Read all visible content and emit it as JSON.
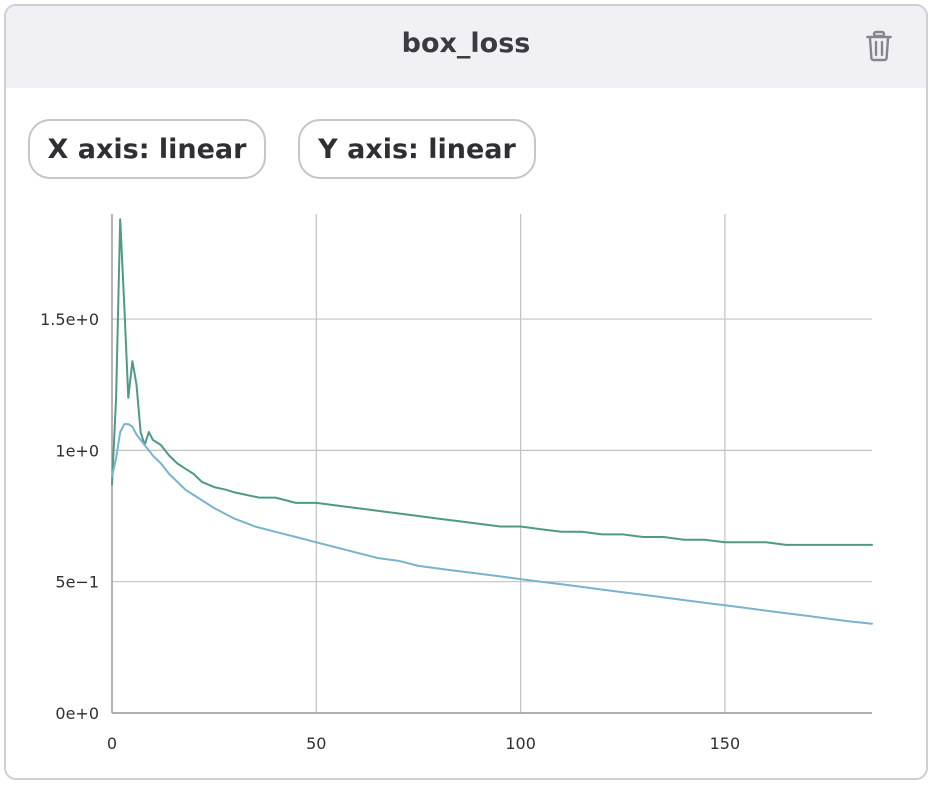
{
  "panel": {
    "title": "box_loss",
    "delete_icon": "trash-icon",
    "x_axis_button": "X axis: linear",
    "y_axis_button": "Y axis: linear"
  },
  "colors": {
    "header_bg": "#f1f1f5",
    "series_1": "#4e9a86",
    "series_2": "#7ab3cc",
    "grid": "#c2c2c2"
  },
  "chart_data": {
    "type": "line",
    "title": "",
    "xlabel": "",
    "ylabel": "",
    "xlim": [
      0,
      186
    ],
    "ylim": [
      0,
      1.9
    ],
    "grid": true,
    "x_ticks": [
      {
        "value": 0,
        "label": "0"
      },
      {
        "value": 50,
        "label": "50"
      },
      {
        "value": 100,
        "label": "100"
      },
      {
        "value": 150,
        "label": "150"
      }
    ],
    "y_ticks": [
      {
        "value": 0,
        "label": "0e+0"
      },
      {
        "value": 0.5,
        "label": "5e−1"
      },
      {
        "value": 1.0,
        "label": "1e+0"
      },
      {
        "value": 1.5,
        "label": "1.5e+0"
      }
    ],
    "series": [
      {
        "color": "#4e9a86",
        "points": [
          [
            0,
            0.87
          ],
          [
            1,
            1.2
          ],
          [
            2,
            1.88
          ],
          [
            3,
            1.55
          ],
          [
            4,
            1.2
          ],
          [
            5,
            1.34
          ],
          [
            6,
            1.25
          ],
          [
            7,
            1.07
          ],
          [
            8,
            1.02
          ],
          [
            9,
            1.07
          ],
          [
            10,
            1.04
          ],
          [
            12,
            1.02
          ],
          [
            14,
            0.98
          ],
          [
            16,
            0.95
          ],
          [
            18,
            0.93
          ],
          [
            20,
            0.91
          ],
          [
            22,
            0.88
          ],
          [
            25,
            0.86
          ],
          [
            28,
            0.85
          ],
          [
            30,
            0.84
          ],
          [
            33,
            0.83
          ],
          [
            36,
            0.82
          ],
          [
            40,
            0.82
          ],
          [
            45,
            0.8
          ],
          [
            50,
            0.8
          ],
          [
            55,
            0.79
          ],
          [
            60,
            0.78
          ],
          [
            65,
            0.77
          ],
          [
            70,
            0.76
          ],
          [
            75,
            0.75
          ],
          [
            80,
            0.74
          ],
          [
            85,
            0.73
          ],
          [
            90,
            0.72
          ],
          [
            95,
            0.71
          ],
          [
            100,
            0.71
          ],
          [
            105,
            0.7
          ],
          [
            110,
            0.69
          ],
          [
            115,
            0.69
          ],
          [
            120,
            0.68
          ],
          [
            125,
            0.68
          ],
          [
            130,
            0.67
          ],
          [
            135,
            0.67
          ],
          [
            140,
            0.66
          ],
          [
            145,
            0.66
          ],
          [
            150,
            0.65
          ],
          [
            155,
            0.65
          ],
          [
            160,
            0.65
          ],
          [
            165,
            0.64
          ],
          [
            170,
            0.64
          ],
          [
            175,
            0.64
          ],
          [
            180,
            0.64
          ],
          [
            186,
            0.64
          ]
        ]
      },
      {
        "color": "#7ab3cc",
        "points": [
          [
            0,
            0.9
          ],
          [
            1,
            0.97
          ],
          [
            2,
            1.07
          ],
          [
            3,
            1.1
          ],
          [
            4,
            1.1
          ],
          [
            5,
            1.09
          ],
          [
            6,
            1.06
          ],
          [
            8,
            1.02
          ],
          [
            10,
            0.98
          ],
          [
            12,
            0.95
          ],
          [
            14,
            0.91
          ],
          [
            16,
            0.88
          ],
          [
            18,
            0.85
          ],
          [
            20,
            0.83
          ],
          [
            25,
            0.78
          ],
          [
            30,
            0.74
          ],
          [
            35,
            0.71
          ],
          [
            40,
            0.69
          ],
          [
            45,
            0.67
          ],
          [
            50,
            0.65
          ],
          [
            55,
            0.63
          ],
          [
            60,
            0.61
          ],
          [
            65,
            0.59
          ],
          [
            70,
            0.58
          ],
          [
            75,
            0.56
          ],
          [
            80,
            0.55
          ],
          [
            85,
            0.54
          ],
          [
            90,
            0.53
          ],
          [
            95,
            0.52
          ],
          [
            100,
            0.51
          ],
          [
            105,
            0.5
          ],
          [
            110,
            0.49
          ],
          [
            115,
            0.48
          ],
          [
            120,
            0.47
          ],
          [
            125,
            0.46
          ],
          [
            130,
            0.45
          ],
          [
            135,
            0.44
          ],
          [
            140,
            0.43
          ],
          [
            145,
            0.42
          ],
          [
            150,
            0.41
          ],
          [
            155,
            0.4
          ],
          [
            160,
            0.39
          ],
          [
            165,
            0.38
          ],
          [
            170,
            0.37
          ],
          [
            175,
            0.36
          ],
          [
            180,
            0.35
          ],
          [
            186,
            0.34
          ]
        ]
      }
    ]
  }
}
